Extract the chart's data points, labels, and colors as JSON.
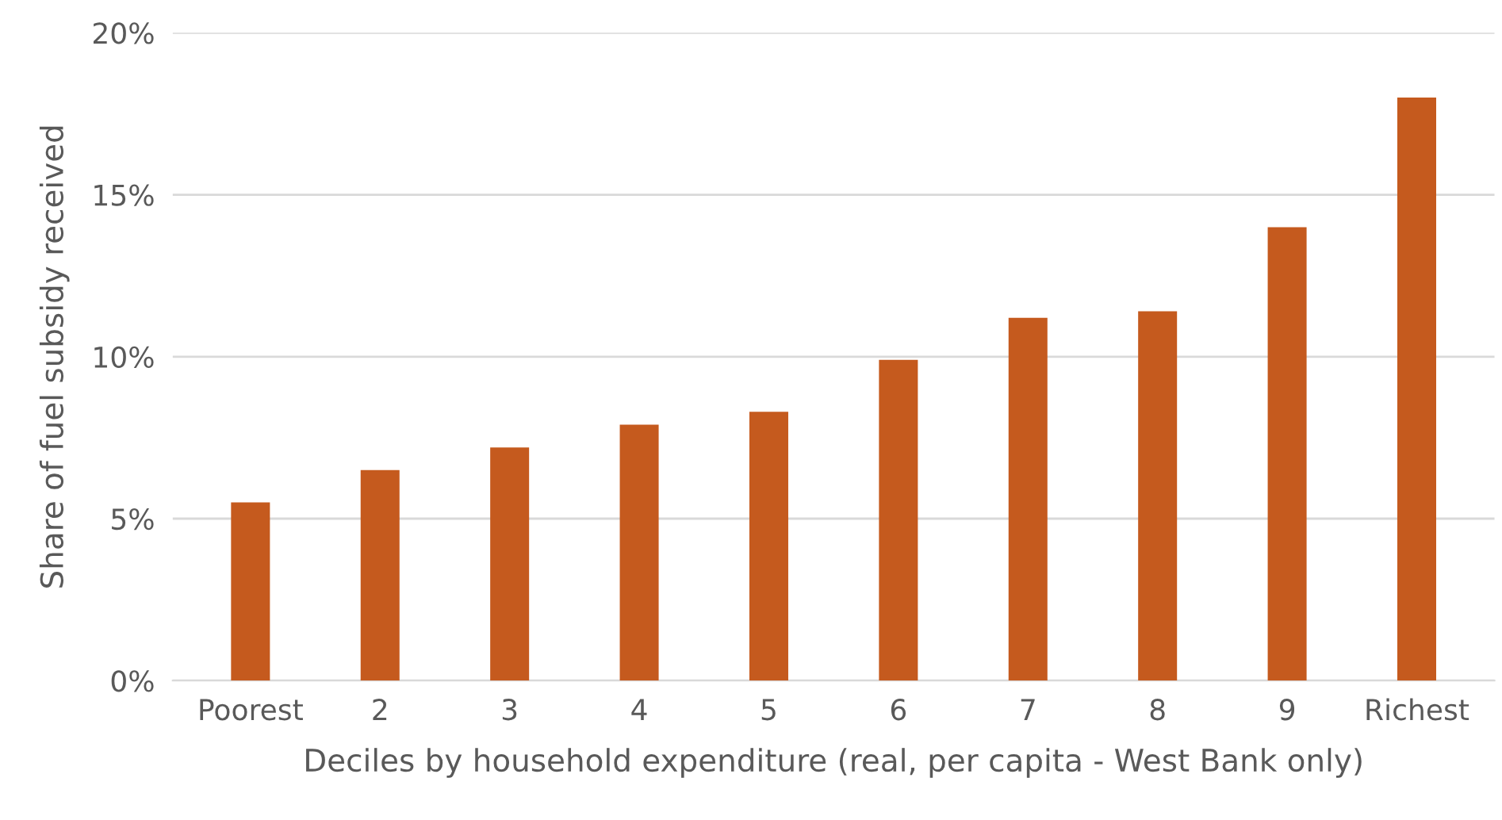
{
  "chart_data": {
    "type": "bar",
    "xlabel": "Deciles by household expenditure (real, per capita - West Bank only)",
    "ylabel": "Share of fuel subsidy received",
    "categories": [
      "Poorest",
      "2",
      "3",
      "4",
      "5",
      "6",
      "7",
      "8",
      "9",
      "Richest"
    ],
    "series": [
      {
        "color": "#c55a1e",
        "values": [
          5.5,
          6.5,
          7.2,
          7.9,
          8.3,
          9.9,
          11.2,
          11.4,
          14.0,
          18.0
        ]
      }
    ],
    "ylim": [
      0,
      20
    ],
    "yticks": [
      {
        "value": 0,
        "label": "0%"
      },
      {
        "value": 5,
        "label": "5%"
      },
      {
        "value": 10,
        "label": "10%"
      },
      {
        "value": 15,
        "label": "15%"
      },
      {
        "value": 20,
        "label": "20%"
      }
    ],
    "grid": "y",
    "legend": false
  }
}
